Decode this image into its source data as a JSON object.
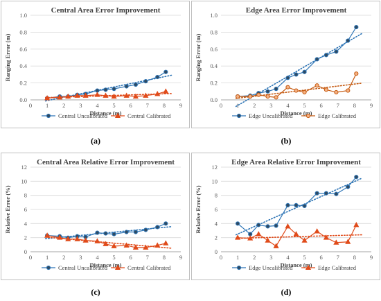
{
  "chart_data": [
    {
      "type": "line",
      "title": "Central Area Error Improvement",
      "xlabel": "Distance (m)",
      "ylabel": "Ranging Error (m)",
      "xlim": [
        0,
        9
      ],
      "ylim": [
        0,
        1
      ],
      "xticks": [
        "0",
        "1",
        "2",
        "3",
        "4",
        "5",
        "6",
        "7",
        "8",
        "9"
      ],
      "yticks": [
        "0.0",
        "0.2",
        "0.4",
        "0.6",
        "0.8",
        "1.0"
      ],
      "ystep": 0.2,
      "caption": "(a)",
      "grid": "horizontal",
      "legend": "bottom",
      "series": [
        {
          "name": "Central Uncalibrated",
          "color": "#2e75b6",
          "marker": "circle",
          "fill": "#2e4a62",
          "x": [
            1.0,
            1.75,
            2.25,
            2.8,
            3.3,
            4.0,
            4.5,
            5.0,
            5.75,
            6.3,
            6.9,
            7.6,
            8.1
          ],
          "y": [
            0.02,
            0.04,
            0.04,
            0.06,
            0.07,
            0.11,
            0.12,
            0.13,
            0.16,
            0.18,
            0.22,
            0.27,
            0.33
          ]
        },
        {
          "name": "Central Calibrated",
          "color": "#e04b1a",
          "marker": "triangle",
          "fill": "#e04b1a",
          "x": [
            1.0,
            1.75,
            2.25,
            2.8,
            3.3,
            4.0,
            4.5,
            5.0,
            5.75,
            6.3,
            6.9,
            7.6,
            8.1
          ],
          "y": [
            0.02,
            0.03,
            0.04,
            0.05,
            0.05,
            0.06,
            0.05,
            0.04,
            0.05,
            0.04,
            0.05,
            0.07,
            0.1
          ]
        }
      ]
    },
    {
      "type": "line",
      "title": "Edge Area Error Improvement",
      "xlabel": "Distance (m)",
      "ylabel": "Ranging Error (m)",
      "xlim": [
        0,
        9
      ],
      "ylim": [
        0,
        1
      ],
      "xticks": [
        "0",
        "1",
        "2",
        "3",
        "4",
        "5",
        "6",
        "7",
        "8",
        "9"
      ],
      "yticks": [
        "0.0",
        "0.2",
        "0.4",
        "0.6",
        "0.8",
        "1.0"
      ],
      "ystep": 0.2,
      "caption": "(b)",
      "grid": "horizontal",
      "legend": "bottom",
      "series": [
        {
          "name": "Edge Uncalibrated",
          "color": "#2e75b6",
          "marker": "circle",
          "fill": "#2e4a62",
          "x": [
            1.0,
            1.75,
            2.25,
            2.8,
            3.3,
            4.0,
            4.5,
            5.0,
            5.75,
            6.3,
            6.9,
            7.6,
            8.1
          ],
          "y": [
            0.04,
            0.05,
            0.08,
            0.1,
            0.13,
            0.26,
            0.3,
            0.33,
            0.48,
            0.53,
            0.57,
            0.7,
            0.86
          ]
        },
        {
          "name": "Edge Calibrated",
          "color": "#c55a11",
          "marker": "circle",
          "fill": "#f4b183",
          "x": [
            1.0,
            1.75,
            2.25,
            2.8,
            3.3,
            4.0,
            4.5,
            5.0,
            5.75,
            6.3,
            6.9,
            7.6,
            8.1
          ],
          "y": [
            0.04,
            0.04,
            0.06,
            0.04,
            0.03,
            0.15,
            0.11,
            0.09,
            0.17,
            0.12,
            0.09,
            0.11,
            0.31
          ]
        }
      ]
    },
    {
      "type": "line",
      "title": "Central Area Relative Error Improvement",
      "xlabel": "Distance (m)",
      "ylabel": "Relative Error (%)",
      "xlim": [
        0,
        9
      ],
      "ylim": [
        0,
        12
      ],
      "xticks": [
        "0",
        "1",
        "2",
        "3",
        "4",
        "5",
        "6",
        "7",
        "8",
        "9"
      ],
      "yticks": [
        "0",
        "2",
        "4",
        "6",
        "8",
        "10",
        "12"
      ],
      "ystep": 2,
      "caption": "(c)",
      "grid": "horizontal",
      "legend": "bottom",
      "series": [
        {
          "name": "Central Uncalibrated",
          "color": "#2e75b6",
          "marker": "circle",
          "fill": "#2e4a62",
          "x": [
            1.0,
            1.75,
            2.25,
            2.8,
            3.3,
            4.0,
            4.5,
            5.0,
            5.75,
            6.3,
            6.9,
            7.6,
            8.1
          ],
          "y": [
            2.3,
            2.2,
            2.0,
            2.2,
            2.1,
            2.7,
            2.6,
            2.5,
            2.8,
            2.8,
            3.1,
            3.5,
            4.0
          ]
        },
        {
          "name": "Central Calibrated",
          "color": "#e04b1a",
          "marker": "triangle",
          "fill": "#e04b1a",
          "x": [
            1.0,
            1.75,
            2.25,
            2.8,
            3.3,
            4.0,
            4.5,
            5.0,
            5.75,
            6.3,
            6.9,
            7.6,
            8.1
          ],
          "y": [
            2.3,
            2.0,
            1.8,
            1.8,
            1.6,
            1.5,
            1.1,
            0.8,
            0.9,
            0.6,
            0.6,
            0.9,
            1.2
          ]
        }
      ]
    },
    {
      "type": "line",
      "title": "Edge Area Relative Error Improvement",
      "xlabel": "Distance (m)",
      "ylabel": "Relative Error (%)",
      "xlim": [
        0,
        9
      ],
      "ylim": [
        0,
        12
      ],
      "xticks": [
        "0",
        "1",
        "2",
        "3",
        "4",
        "5",
        "6",
        "7",
        "8",
        "9"
      ],
      "yticks": [
        "0",
        "2",
        "4",
        "6",
        "8",
        "10",
        "12"
      ],
      "ystep": 2,
      "caption": "(d)",
      "grid": "horizontal",
      "legend": "bottom",
      "series": [
        {
          "name": "Edge Uncalibrated",
          "color": "#2e75b6",
          "marker": "circle",
          "fill": "#2e4a62",
          "x": [
            1.0,
            1.75,
            2.25,
            2.8,
            3.3,
            4.0,
            4.5,
            5.0,
            5.75,
            6.3,
            6.9,
            7.6,
            8.1
          ],
          "y": [
            4.0,
            2.5,
            3.8,
            3.6,
            3.7,
            6.6,
            6.6,
            6.5,
            8.3,
            8.3,
            8.2,
            9.2,
            10.6
          ]
        },
        {
          "name": "Edge Calibrated",
          "color": "#e04b1a",
          "marker": "triangle",
          "fill": "#e04b1a",
          "x": [
            1.0,
            1.75,
            2.25,
            2.8,
            3.3,
            4.0,
            4.5,
            5.0,
            5.75,
            6.3,
            6.9,
            7.6,
            8.1
          ],
          "y": [
            2.0,
            1.9,
            2.5,
            1.6,
            0.8,
            3.6,
            2.5,
            1.6,
            2.9,
            2.0,
            1.3,
            1.4,
            3.8
          ]
        }
      ]
    }
  ]
}
